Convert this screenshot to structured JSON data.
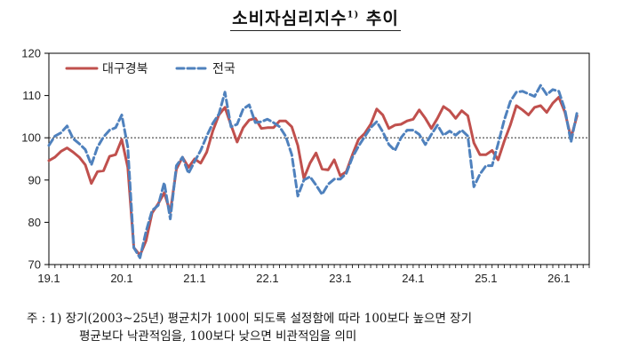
{
  "title_main": "소비자심리지수",
  "title_sup": "1)",
  "title_suffix": " 추이",
  "footnote": {
    "line1": "주 : 1) 장기(2003~25년) 평균치가 100이 되도록 설정함에 따라 100보다 높으면 장기",
    "line2": "평균보다 낙관적임을, 100보다 낮으면 비관적임을 의미"
  },
  "colors": {
    "daegu": "#c0504d",
    "national": "#4f81bd",
    "reference": "#444444"
  },
  "chart_data": {
    "type": "line",
    "title": "소비자심리지수 추이",
    "xlabel": "",
    "ylabel": "",
    "ylim": [
      70,
      120
    ],
    "yticks": [
      70,
      80,
      90,
      100,
      110,
      120
    ],
    "x_tick_labels": [
      "19.1",
      "20.1",
      "21.1",
      "22.1",
      "23.1",
      "24.1",
      "25.1",
      "26.1"
    ],
    "x_start": "2019-01",
    "months": 90,
    "reference_line": 100,
    "legend": "top-left",
    "grid": false,
    "series": [
      {
        "name": "대구경북",
        "style": "solid",
        "values": [
          94.6,
          95.4,
          96.8,
          97.6,
          96.6,
          95.4,
          93.6,
          89.2,
          92.0,
          92.2,
          95.6,
          96.0,
          99.6,
          93.0,
          74.0,
          72.2,
          75.6,
          82.2,
          84.4,
          87.0,
          82.4,
          92.6,
          95.4,
          93.0,
          95.0,
          94.0,
          96.6,
          101.6,
          105.4,
          107.2,
          103.0,
          99.0,
          102.4,
          104.2,
          104.6,
          102.2,
          102.4,
          102.4,
          104.0,
          104.0,
          102.6,
          98.2,
          90.4,
          94.0,
          96.4,
          92.6,
          92.4,
          94.8,
          91.0,
          92.0,
          96.0,
          99.6,
          101.0,
          103.2,
          106.8,
          105.4,
          102.2,
          103.0,
          103.2,
          104.0,
          104.4,
          106.6,
          104.6,
          102.2,
          104.6,
          107.4,
          106.4,
          104.6,
          106.4,
          105.2,
          98.8,
          96.0,
          96.0,
          97.0,
          94.8,
          99.2,
          103.0,
          107.6,
          106.6,
          105.4,
          107.2,
          107.6,
          106.0,
          108.2,
          109.6,
          106.0,
          100.0,
          105.2
        ]
      },
      {
        "name": "전국",
        "style": "dashed",
        "values": [
          98.2,
          100.4,
          101.2,
          102.8,
          99.8,
          98.6,
          97.2,
          93.6,
          97.8,
          100.2,
          101.8,
          102.4,
          105.4,
          97.8,
          74.0,
          71.6,
          77.8,
          82.8,
          84.0,
          89.4,
          80.8,
          93.4,
          95.4,
          91.6,
          94.4,
          97.0,
          100.4,
          103.4,
          105.6,
          110.8,
          102.6,
          103.2,
          106.8,
          107.8,
          103.6,
          103.8,
          104.4,
          103.6,
          102.6,
          100.4,
          96.0,
          86.2,
          90.0,
          90.8,
          88.8,
          86.6,
          89.0,
          90.2,
          90.2,
          91.6,
          95.4,
          98.0,
          100.2,
          102.4,
          103.8,
          101.4,
          98.4,
          97.0,
          100.0,
          101.8,
          101.8,
          100.8,
          98.4,
          100.8,
          103.0,
          100.6,
          101.6,
          100.6,
          101.8,
          100.4,
          88.4,
          91.4,
          93.4,
          93.4,
          98.6,
          104.2,
          108.6,
          110.8,
          111.0,
          110.4,
          109.8,
          112.4,
          110.2,
          111.4,
          111.0,
          106.6,
          99.0,
          106.0
        ]
      }
    ]
  }
}
